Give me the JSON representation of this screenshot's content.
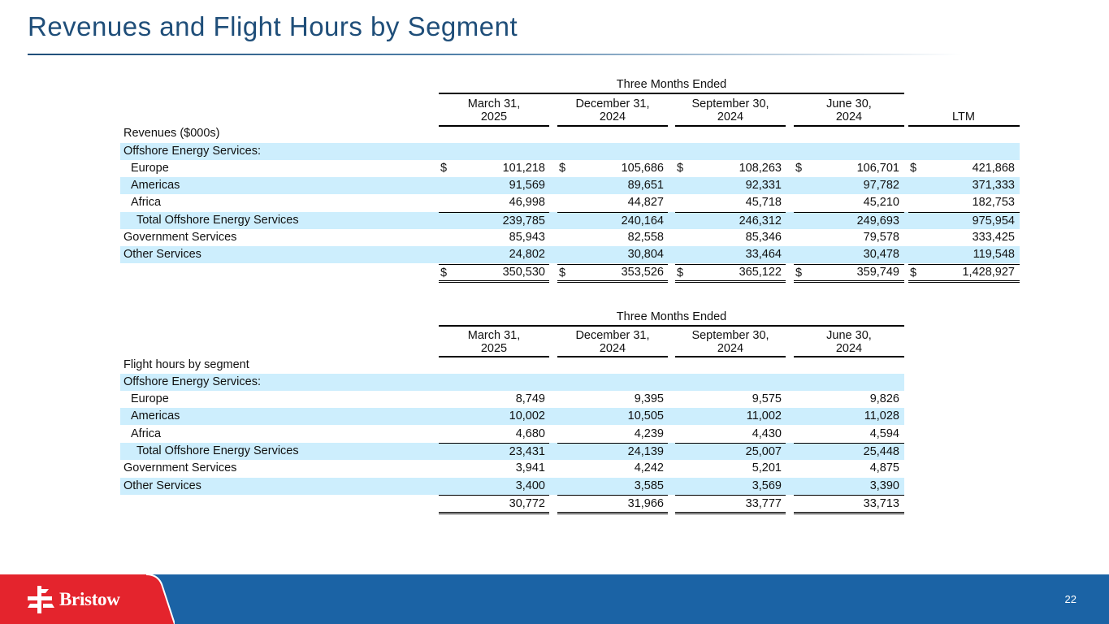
{
  "page": {
    "title": "Revenues and Flight Hours by Segment",
    "page_number": "22"
  },
  "brand": {
    "name": "Bristow",
    "footer_blue": "#1b63a5",
    "footer_red": "#e4242d",
    "title_color": "#1f4e79",
    "shade": "#cdeefd"
  },
  "revenues": {
    "group_header": "Three Months Ended",
    "columns": [
      "March 31,\n2025",
      "December 31,\n2024",
      "September 30,\n2024",
      "June 30,\n2024",
      "LTM"
    ],
    "section_title": "Revenues ($000s)",
    "rows": [
      {
        "label": "Offshore Energy Services:",
        "values": [
          "",
          "",
          "",
          "",
          ""
        ]
      },
      {
        "label": "Europe",
        "values": [
          "101,218",
          "105,686",
          "108,263",
          "106,701",
          "421,868"
        ]
      },
      {
        "label": "Americas",
        "values": [
          "91,569",
          "89,651",
          "92,331",
          "97,782",
          "371,333"
        ]
      },
      {
        "label": "Africa",
        "values": [
          "46,998",
          "44,827",
          "45,718",
          "45,210",
          "182,753"
        ]
      },
      {
        "label": "Total Offshore Energy Services",
        "values": [
          "239,785",
          "240,164",
          "246,312",
          "249,693",
          "975,954"
        ]
      },
      {
        "label": "Government Services",
        "values": [
          "85,943",
          "82,558",
          "85,346",
          "79,578",
          "333,425"
        ]
      },
      {
        "label": "Other Services",
        "values": [
          "24,802",
          "30,804",
          "33,464",
          "30,478",
          "119,548"
        ]
      },
      {
        "label": "",
        "values": [
          "350,530",
          "353,526",
          "365,122",
          "359,749",
          "1,428,927"
        ]
      }
    ],
    "currency_symbol": "$"
  },
  "flight_hours": {
    "group_header": "Three Months Ended",
    "columns": [
      "March 31,\n2025",
      "December 31,\n2024",
      "September 30,\n2024",
      "June 30,\n2024"
    ],
    "section_title": "Flight hours by segment",
    "rows": [
      {
        "label": "Offshore Energy Services:",
        "values": [
          "",
          "",
          "",
          ""
        ]
      },
      {
        "label": "Europe",
        "values": [
          "8,749",
          "9,395",
          "9,575",
          "9,826"
        ]
      },
      {
        "label": "Americas",
        "values": [
          "10,002",
          "10,505",
          "11,002",
          "11,028"
        ]
      },
      {
        "label": "Africa",
        "values": [
          "4,680",
          "4,239",
          "4,430",
          "4,594"
        ]
      },
      {
        "label": "Total Offshore Energy Services",
        "values": [
          "23,431",
          "24,139",
          "25,007",
          "25,448"
        ]
      },
      {
        "label": "Government Services",
        "values": [
          "3,941",
          "4,242",
          "5,201",
          "4,875"
        ]
      },
      {
        "label": "Other Services",
        "values": [
          "3,400",
          "3,585",
          "3,569",
          "3,390"
        ]
      },
      {
        "label": "",
        "values": [
          "30,772",
          "31,966",
          "33,777",
          "33,713"
        ]
      }
    ]
  }
}
